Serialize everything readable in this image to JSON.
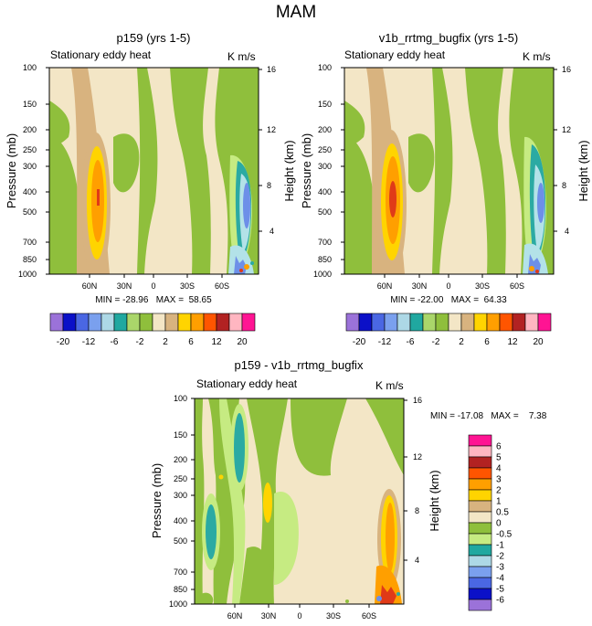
{
  "figure_title": "MAM",
  "colors": {
    "sst_bg": "#f3e6c6",
    "gold": "#cfa97a",
    "light_green": "#c6eb82",
    "olive": "#8fbf3c",
    "teal": "#2baaa3",
    "pale_blue": "#b3e2e8",
    "blue": "#6d8fe8",
    "yellow": "#ffd400",
    "orange": "#ff9f00",
    "orange_red": "#ff6a00",
    "red": "#e03a18",
    "dark_red": "#a32d2d"
  },
  "chart_data": [
    {
      "type": "heatmap",
      "title": "p159 (yrs 1-5)",
      "field_label": "Stationary eddy heat",
      "units": "K m/s",
      "ylabel": "Pressure (mb)",
      "ylabel_right": "Height (km)",
      "yticks": [
        "100",
        "150",
        "200",
        "250",
        "300",
        "400",
        "500",
        "700",
        "850",
        "1000"
      ],
      "yticks_right": [
        "16",
        "12",
        "8",
        "4"
      ],
      "xticks": [
        "60N",
        "30N",
        "0",
        "30S",
        "60S"
      ],
      "stats": "MIN = -28.96   MAX =  58.65",
      "min": -28.96,
      "max": 58.65
    },
    {
      "type": "heatmap",
      "title": "v1b_rrtmg_bugfix (yrs 1-5)",
      "field_label": "Stationary eddy heat",
      "units": "K m/s",
      "ylabel": "Pressure (mb)",
      "ylabel_right": "Height (km)",
      "yticks": [
        "100",
        "150",
        "200",
        "250",
        "300",
        "400",
        "500",
        "700",
        "850",
        "1000"
      ],
      "yticks_right": [
        "16",
        "12",
        "8",
        "4"
      ],
      "xticks": [
        "60N",
        "30N",
        "0",
        "30S",
        "60S"
      ],
      "stats": "MIN = -22.00   MAX =  64.33",
      "min": -22.0,
      "max": 64.33
    },
    {
      "type": "heatmap",
      "title": "p159 - v1b_rrtmg_bugfix",
      "field_label": "Stationary eddy heat",
      "units": "K m/s",
      "ylabel": "Pressure (mb)",
      "ylabel_right": "Height (km)",
      "yticks": [
        "100",
        "150",
        "200",
        "250",
        "300",
        "400",
        "500",
        "700",
        "850",
        "1000"
      ],
      "yticks_right": [
        "16",
        "12",
        "8",
        "4"
      ],
      "xticks": [
        "60N",
        "30N",
        "0",
        "30S",
        "60S"
      ],
      "stats": "MIN = -17.08   MAX =    7.38",
      "min": -17.08,
      "max": 7.38
    }
  ],
  "colorbar_main": {
    "labels": [
      "-20",
      "-12",
      "-6",
      "-2",
      "2",
      "6",
      "12",
      "20"
    ],
    "colors": [
      "#9b72d9",
      "#0b10c8",
      "#4a67e3",
      "#7aa0ee",
      "#add8e6",
      "#20a8a0",
      "#aad66a",
      "#8fbf3c",
      "#f3e6c6",
      "#d8b37f",
      "#ffd400",
      "#ff9f00",
      "#ff5500",
      "#b22222",
      "#ffb6c1",
      "#ff1493"
    ]
  },
  "colorbar_diff": {
    "labels": [
      "6",
      "5",
      "4",
      "3",
      "2",
      "1",
      "0.5",
      "0",
      "-0.5",
      "-1",
      "-2",
      "-3",
      "-4",
      "-5",
      "-6"
    ],
    "colors": [
      "#ff1493",
      "#ffb6c1",
      "#b22222",
      "#ff5500",
      "#ff9f00",
      "#ffd400",
      "#d8b37f",
      "#f3e6c6",
      "#8fbf3c",
      "#c6eb82",
      "#20a8a0",
      "#add8e6",
      "#7aa0ee",
      "#4a67e3",
      "#0b10c8",
      "#9b72d9"
    ]
  }
}
